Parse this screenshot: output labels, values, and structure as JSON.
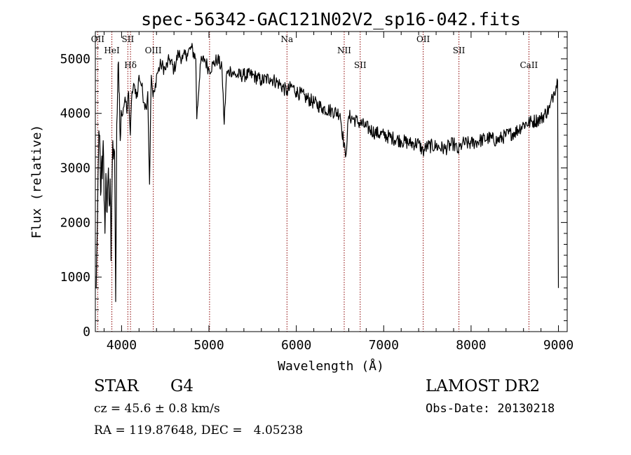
{
  "chart_data": {
    "type": "line",
    "title": "spec-56342-GAC121N02V2_sp16-042.fits",
    "xlabel": "Wavelength (Å)",
    "ylabel": "Flux (relative)",
    "xlim": [
      3700,
      9100
    ],
    "ylim": [
      0,
      5500
    ],
    "xticks": [
      4000,
      5000,
      6000,
      7000,
      8000,
      9000
    ],
    "yticks": [
      0,
      1000,
      2000,
      3000,
      4000,
      5000
    ],
    "grid": false,
    "line_color": "#000000",
    "marker_color": "#8b0000",
    "lines": [
      {
        "label": "OII",
        "x": 3727
      },
      {
        "label": "HeI",
        "x": 3889
      },
      {
        "label": "Hδ",
        "x": 4102
      },
      {
        "label": "SII",
        "x": 4072
      },
      {
        "label": "OIII",
        "x": 4363
      },
      {
        "label": "",
        "x": 5007
      },
      {
        "label": "Na",
        "x": 5893
      },
      {
        "label": "NII",
        "x": 6548
      },
      {
        "label": "SII",
        "x": 6731
      },
      {
        "label": "OII",
        "x": 7452
      },
      {
        "label": "SII",
        "x": 7861
      },
      {
        "label": "CaII",
        "x": 8662
      }
    ],
    "series": [
      {
        "x": [
          3710,
          3720,
          3735,
          3750,
          3760,
          3770,
          3780,
          3790,
          3800,
          3810,
          3820,
          3830,
          3840,
          3850,
          3860,
          3870,
          3880,
          3900,
          3920,
          3933,
          3945,
          3960,
          3970,
          3985,
          4000,
          4020,
          4040,
          4060,
          4080,
          4100,
          4120,
          4150,
          4180,
          4200,
          4230,
          4260,
          4280,
          4300,
          4320,
          4340,
          4360,
          4380,
          4400,
          4450,
          4500,
          4550,
          4600,
          4650,
          4700,
          4750,
          4800,
          4850,
          4861,
          4900,
          4950,
          5000,
          5050,
          5100,
          5150,
          5175,
          5200,
          5250,
          5300,
          5400,
          5500,
          5600,
          5700,
          5800,
          5893,
          5950,
          6000,
          6100,
          6200,
          6300,
          6400,
          6500,
          6563,
          6600,
          6700,
          6800,
          6900,
          7000,
          7100,
          7200,
          7300,
          7400,
          7450,
          7500,
          7600,
          7700,
          7800,
          7850,
          7900,
          8000,
          8100,
          8200,
          8300,
          8400,
          8500,
          8600,
          8700,
          8800,
          8900,
          8950,
          8990,
          9000
        ],
        "y": [
          800,
          1700,
          3200,
          3600,
          2500,
          3100,
          2800,
          3500,
          2400,
          1800,
          2900,
          2200,
          2600,
          3000,
          2300,
          2800,
          1300,
          3500,
          3300,
          550,
          3800,
          4900,
          4400,
          3500,
          4000,
          4100,
          4300,
          4000,
          4400,
          3600,
          4400,
          4500,
          4300,
          4700,
          4500,
          4200,
          4100,
          4400,
          2700,
          4700,
          4300,
          4400,
          4700,
          4900,
          4800,
          5000,
          4800,
          5100,
          5000,
          5100,
          5200,
          5000,
          3900,
          4900,
          5000,
          4800,
          4900,
          5000,
          4800,
          3800,
          4700,
          4800,
          4700,
          4700,
          4700,
          4600,
          4650,
          4550,
          4400,
          4500,
          4400,
          4300,
          4200,
          4100,
          4050,
          4000,
          3200,
          3950,
          3850,
          3750,
          3650,
          3600,
          3550,
          3500,
          3450,
          3450,
          3300,
          3400,
          3400,
          3350,
          3450,
          3300,
          3450,
          3450,
          3500,
          3550,
          3500,
          3600,
          3650,
          3800,
          3850,
          3900,
          4100,
          4400,
          4600,
          800
        ]
      }
    ]
  },
  "info": {
    "class_label": "STAR",
    "subclass": "G4",
    "survey": "LAMOST DR2",
    "redshift_text": "cz = 45.6 ± 0.8 km/s",
    "obs_date_text": "Obs-Date: 20130218",
    "coords_text": "RA = 119.87648, DEC =   4.05238"
  }
}
